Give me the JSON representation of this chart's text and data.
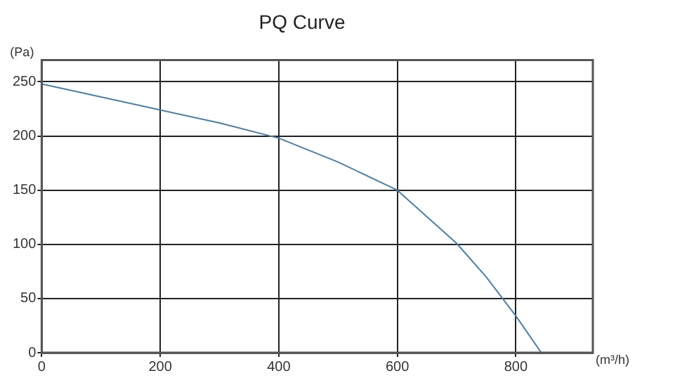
{
  "chart_data": {
    "type": "line",
    "title": "PQ Curve",
    "xlabel": "(m³/h)",
    "ylabel": "(Pa)",
    "x": [
      0,
      100,
      200,
      300,
      400,
      500,
      600,
      700,
      750,
      800,
      843
    ],
    "series": [
      {
        "color": "#4a7fa8",
        "values": [
          248,
          236,
          224,
          212,
          198,
          176,
          150,
          101,
          70,
          34,
          0
        ]
      }
    ],
    "xlim": [
      0,
      930
    ],
    "xticks": [
      0,
      200,
      400,
      600,
      800
    ],
    "ylim": [
      0,
      270
    ],
    "yticks": [
      0,
      50,
      100,
      150,
      200,
      250
    ],
    "grid": true,
    "legend": false,
    "marker": "none",
    "line_style": "solid"
  }
}
